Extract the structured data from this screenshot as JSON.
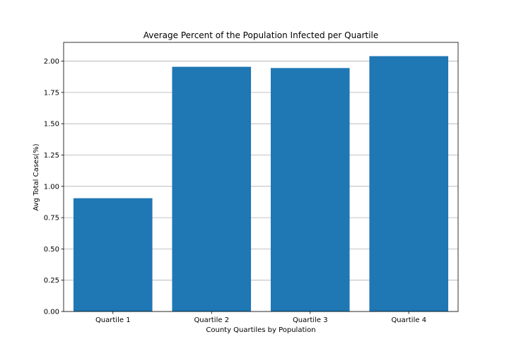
{
  "chart_data": {
    "type": "bar",
    "title": "Average Percent of the Population Infected per Quartile",
    "xlabel": "County Quartiles by Population",
    "ylabel": "Avg Total Cases(%)",
    "categories": [
      "Quartile 1",
      "Quartile 2",
      "Quartile 3",
      "Quartile 4"
    ],
    "values": [
      0.905,
      1.955,
      1.945,
      2.04
    ],
    "ylim": [
      0,
      2.15
    ],
    "yticks": [
      0.0,
      0.25,
      0.5,
      0.75,
      1.0,
      1.25,
      1.5,
      1.75,
      2.0
    ],
    "ytick_labels": [
      "0.00",
      "0.25",
      "0.50",
      "0.75",
      "1.00",
      "1.25",
      "1.50",
      "1.75",
      "2.00"
    ],
    "grid": "horizontal",
    "bar_color": "#1f77b4",
    "grid_color": "#b0b0b0"
  }
}
